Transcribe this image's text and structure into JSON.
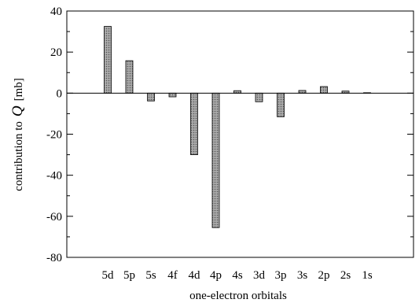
{
  "chart_data": {
    "type": "bar",
    "title": "",
    "xlabel": "one-electron orbitals",
    "ylabel_prefix": "contribution to",
    "ylabel_symbol": "Q",
    "ylabel_unit": "[mb]",
    "ylim": [
      -80,
      40
    ],
    "yticks": [
      40,
      20,
      0,
      -20,
      -40,
      -60,
      -80
    ],
    "ytick_labels": [
      "40",
      "20",
      "0",
      "-20",
      "-40",
      "-60",
      "-80"
    ],
    "categories": [
      "5d",
      "5p",
      "5s",
      "4f",
      "4d",
      "4p",
      "4s",
      "3d",
      "3p",
      "3s",
      "2p",
      "2s",
      "1s"
    ],
    "values": [
      32.5,
      15.8,
      -3.8,
      -1.8,
      -30.0,
      -65.5,
      1.2,
      -4.2,
      -11.5,
      1.3,
      3.2,
      1.0,
      0.2
    ],
    "grid": false,
    "bar_fill": "#9a9a9a",
    "bar_stroke": "#000000"
  }
}
